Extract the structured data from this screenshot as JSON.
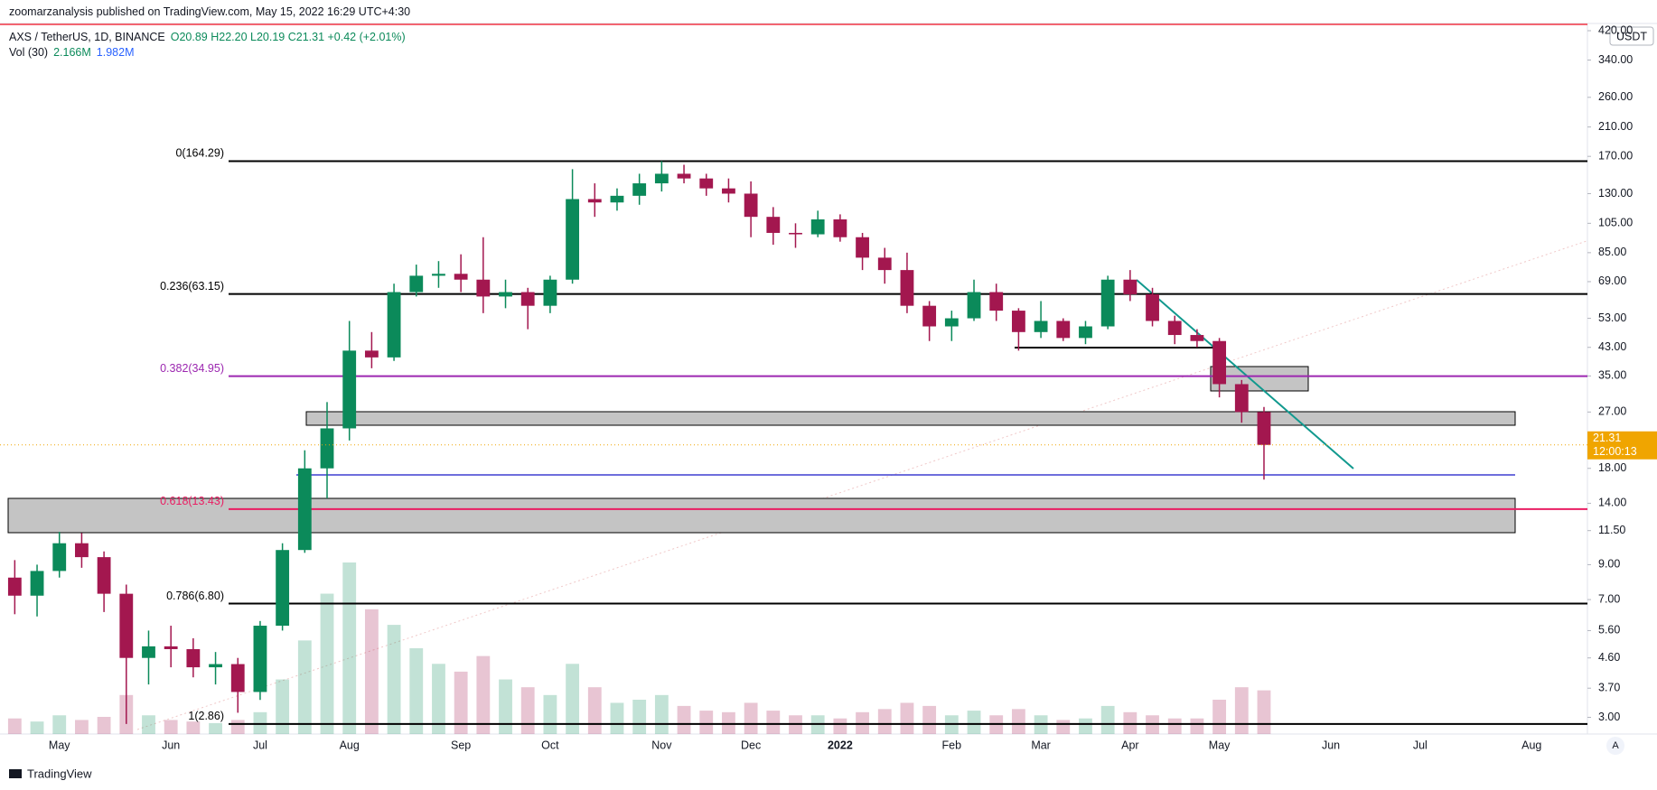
{
  "header": {
    "publisher": "zoomarzanalysis published on TradingView.com, May 15, 2022 16:29 UTC+4:30",
    "symbol": "AXS / TetherUS, 1D, BINANCE",
    "ohlc": "O20.89 H22.20 L20.19 C21.31 +0.42 (+2.01%)",
    "volume_label": "Vol (30)",
    "volume_value": "2.166M",
    "volume_ma": "1.982M"
  },
  "footer": "TradingView",
  "auto_scale": "A",
  "chart_data": {
    "type": "candlestick",
    "log_scale": true,
    "currency": "USDT",
    "up_color": "#0b8a5a",
    "down_color": "#a3174f",
    "ylim": [
      2.66,
      457
    ],
    "yticks": [
      {
        "value": 3,
        "label": "3.00"
      },
      {
        "value": 3.7,
        "label": "3.70"
      },
      {
        "value": 4.6,
        "label": "4.60"
      },
      {
        "value": 5.6,
        "label": "5.60"
      },
      {
        "value": 7,
        "label": "7.00"
      },
      {
        "value": 9,
        "label": "9.00"
      },
      {
        "value": 11.5,
        "label": "11.50"
      },
      {
        "value": 14,
        "label": "14.00"
      },
      {
        "value": 18,
        "label": "18.00"
      },
      {
        "value": 27,
        "label": "27.00"
      },
      {
        "value": 35,
        "label": "35.00"
      },
      {
        "value": 43,
        "label": "43.00"
      },
      {
        "value": 53,
        "label": "53.00"
      },
      {
        "value": 69,
        "label": "69.00"
      },
      {
        "value": 85,
        "label": "85.00"
      },
      {
        "value": 105,
        "label": "105.00"
      },
      {
        "value": 130,
        "label": "130.00"
      },
      {
        "value": 170,
        "label": "170.00"
      },
      {
        "value": 210,
        "label": "210.00"
      },
      {
        "value": 260,
        "label": "260.00"
      },
      {
        "value": 340,
        "label": "340.00"
      },
      {
        "value": 420,
        "label": "420.00"
      }
    ],
    "categories": [
      null,
      null,
      "May",
      null,
      null,
      null,
      null,
      "Jun",
      null,
      null,
      null,
      "Jul",
      null,
      null,
      null,
      "Aug",
      null,
      null,
      null,
      null,
      "Sep",
      null,
      null,
      null,
      "Oct",
      null,
      null,
      null,
      null,
      "Nov",
      null,
      null,
      null,
      "Dec",
      null,
      null,
      null,
      "2022",
      null,
      null,
      null,
      null,
      "Feb",
      null,
      null,
      null,
      "Mar",
      null,
      null,
      null,
      "Apr",
      null,
      null,
      null,
      "May",
      null,
      null,
      null,
      null,
      "Jun",
      null,
      null,
      null,
      "Jul",
      null,
      null,
      null,
      null,
      "Aug",
      null,
      null
    ],
    "open": [
      8.2,
      7.2,
      8.6,
      10.5,
      9.5,
      7.3,
      4.6,
      5.0,
      4.9,
      4.3,
      4.4,
      3.6,
      5.8,
      10,
      18,
      24,
      42,
      40,
      64,
      72,
      73,
      70,
      62,
      64,
      58,
      70,
      125,
      122,
      128,
      140,
      150,
      145,
      135,
      130,
      110,
      98,
      97,
      108,
      95,
      82,
      75,
      58,
      50,
      53,
      64,
      56,
      48,
      52,
      46,
      50,
      70,
      63,
      52,
      47,
      45,
      33,
      27,
      null,
      null,
      null,
      null,
      null,
      null,
      null,
      null,
      null,
      null,
      null,
      null,
      null,
      null
    ],
    "high": [
      9.3,
      9.0,
      11.4,
      11.3,
      9.9,
      7.8,
      5.6,
      5.8,
      5.3,
      4.8,
      4.6,
      6.0,
      10.5,
      20.5,
      29,
      52,
      48,
      68,
      78,
      80,
      84,
      95,
      70,
      66,
      72,
      155,
      140,
      135,
      150,
      164.29,
      160,
      150,
      145,
      142,
      118,
      105,
      115,
      112,
      98,
      88,
      85,
      60,
      56,
      70,
      68,
      57,
      60,
      53,
      52,
      72,
      75,
      66,
      54,
      49,
      46,
      34,
      28,
      null,
      null,
      null,
      null,
      null,
      null,
      null,
      null,
      null,
      null,
      null,
      null,
      null,
      null
    ],
    "low": [
      6.3,
      6.2,
      8.2,
      8.8,
      6.4,
      2.86,
      3.8,
      4.3,
      4.0,
      3.8,
      3.1,
      3.4,
      5.6,
      9.8,
      14.5,
      22,
      37,
      39,
      62,
      66,
      64,
      55,
      57,
      49,
      55,
      68,
      110,
      115,
      120,
      132,
      140,
      128,
      122,
      95,
      90,
      88,
      95,
      92,
      75,
      68,
      55,
      45,
      45,
      52,
      52,
      42,
      46,
      45,
      44,
      49,
      60,
      50,
      44,
      43,
      30,
      25,
      16.6,
      null,
      null,
      null,
      null,
      null,
      null,
      null,
      null,
      null,
      null,
      null,
      null,
      null,
      null
    ],
    "close": [
      7.2,
      8.6,
      10.5,
      9.5,
      7.3,
      4.6,
      5.0,
      4.9,
      4.3,
      4.4,
      3.6,
      5.8,
      10,
      18,
      24,
      42,
      40,
      64,
      72,
      73,
      70,
      62,
      64,
      58,
      70,
      125,
      122,
      128,
      140,
      150,
      145,
      135,
      130,
      110,
      98,
      97,
      108,
      95,
      82,
      75,
      58,
      50,
      53,
      64,
      56,
      48,
      52,
      46,
      50,
      70,
      63,
      52,
      47,
      45,
      33,
      27,
      21.31,
      null,
      null,
      null,
      null,
      null,
      null,
      null,
      null,
      null,
      null,
      null,
      null,
      null,
      null
    ],
    "volume": [
      10,
      8,
      12,
      9,
      11,
      25,
      12,
      9,
      8,
      7,
      9,
      14,
      35,
      60,
      90,
      110,
      80,
      70,
      55,
      45,
      40,
      50,
      35,
      30,
      25,
      45,
      30,
      20,
      22,
      25,
      18,
      15,
      14,
      20,
      15,
      12,
      12,
      10,
      14,
      16,
      20,
      18,
      12,
      15,
      12,
      16,
      12,
      9,
      10,
      18,
      14,
      12,
      10,
      10,
      22,
      30,
      28,
      null,
      null,
      null,
      null,
      null,
      null,
      null,
      null,
      null,
      null,
      null,
      null,
      null,
      null
    ],
    "fib_levels": [
      {
        "label": "0(164.29)",
        "value": 164.29,
        "color": "#000000"
      },
      {
        "label": "0.236(63.15)",
        "value": 63.15,
        "color": "#000000"
      },
      {
        "label": "0.382(34.95)",
        "value": 34.95,
        "color": "#9c27b0"
      },
      {
        "label": "0.618(13.43)",
        "value": 13.43,
        "color": "#e91e63"
      },
      {
        "label": "0.786(6.80)",
        "value": 6.8,
        "color": "#000000"
      },
      {
        "label": "1(2.86)",
        "value": 2.86,
        "color": "#000000"
      }
    ],
    "last_price": 21.31,
    "countdown": "12:00:13",
    "last_color": "#f0a500"
  }
}
